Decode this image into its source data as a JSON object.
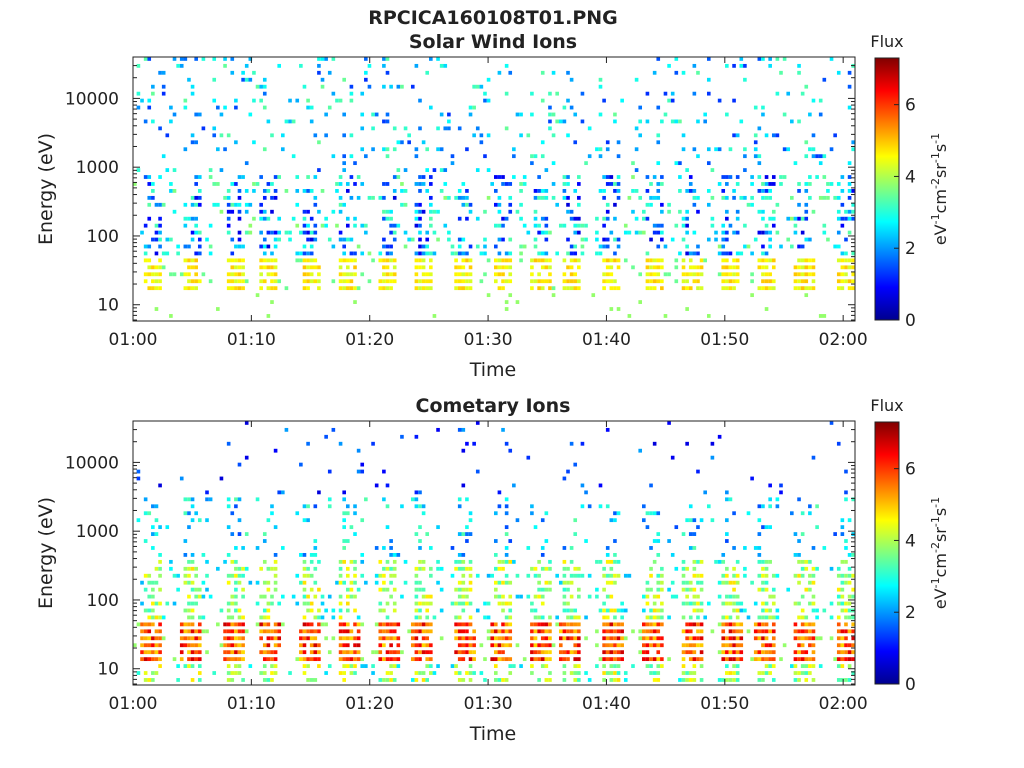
{
  "title": "RPCICA160108T01.PNG",
  "panels": [
    {
      "title": "Solar Wind Ions",
      "xlabel": "Time",
      "ylabel": "Energy (eV)",
      "colorbar_title": "Flux",
      "colorbar_unit": "eV-1cm-2sr-1s-1"
    },
    {
      "title": "Cometary Ions",
      "xlabel": "Time",
      "ylabel": "Energy (eV)",
      "colorbar_title": "Flux",
      "colorbar_unit": "eV-1cm-2sr-1s-1"
    }
  ],
  "x_tick_labels": [
    "01:00",
    "01:10",
    "01:20",
    "01:30",
    "01:40",
    "01:50",
    "02:00"
  ],
  "y_tick_labels": [
    "10",
    "100",
    "1000",
    "10000"
  ],
  "colorbar_tick_labels": [
    "0",
    "2",
    "4",
    "6"
  ],
  "colorbar_range": [
    0,
    7.3
  ],
  "x_scale": "time",
  "y_scale": "log",
  "x_range_minutes": [
    0,
    61
  ],
  "y_range": [
    5.8,
    40000
  ],
  "colormap": [
    "#00008f",
    "#0000ff",
    "#00ffff",
    "#ffff00",
    "#ff0000",
    "#800000"
  ],
  "background_color": "#ffffff"
}
